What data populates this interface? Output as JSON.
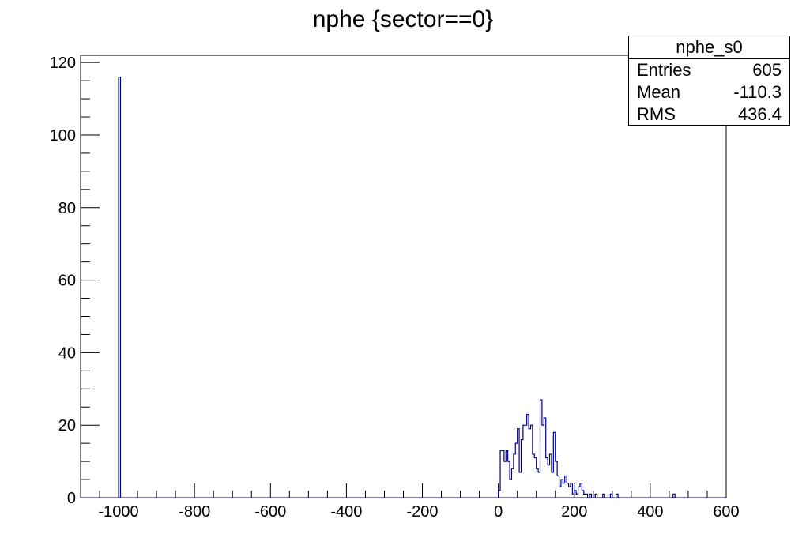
{
  "chart_data": {
    "type": "bar",
    "title": "nphe {sector==0}",
    "xlabel": "",
    "ylabel": "",
    "xlim": [
      -1100,
      600
    ],
    "ylim": [
      0,
      122
    ],
    "x_ticks": [
      -1000,
      -800,
      -600,
      -400,
      -200,
      0,
      200,
      400,
      600
    ],
    "y_ticks": [
      0,
      20,
      40,
      60,
      80,
      100,
      120
    ],
    "histogram": {
      "name": "nphe_s0",
      "bin_width": 5,
      "color": "#000080",
      "bins": [
        [
          -1000,
          116
        ],
        [
          0,
          2
        ],
        [
          5,
          13
        ],
        [
          10,
          13
        ],
        [
          15,
          10
        ],
        [
          20,
          13
        ],
        [
          25,
          10
        ],
        [
          30,
          5
        ],
        [
          35,
          8
        ],
        [
          40,
          12
        ],
        [
          45,
          15
        ],
        [
          50,
          19
        ],
        [
          55,
          7
        ],
        [
          60,
          16
        ],
        [
          65,
          20
        ],
        [
          70,
          20
        ],
        [
          75,
          23
        ],
        [
          80,
          19
        ],
        [
          85,
          20
        ],
        [
          90,
          12
        ],
        [
          95,
          11
        ],
        [
          100,
          8
        ],
        [
          105,
          7
        ],
        [
          110,
          27
        ],
        [
          115,
          20
        ],
        [
          120,
          22
        ],
        [
          125,
          11
        ],
        [
          130,
          9
        ],
        [
          135,
          12
        ],
        [
          140,
          7
        ],
        [
          145,
          18
        ],
        [
          150,
          10
        ],
        [
          155,
          6
        ],
        [
          160,
          3
        ],
        [
          165,
          5
        ],
        [
          170,
          4
        ],
        [
          175,
          6
        ],
        [
          180,
          4
        ],
        [
          185,
          3
        ],
        [
          190,
          4
        ],
        [
          195,
          1
        ],
        [
          200,
          2
        ],
        [
          205,
          1
        ],
        [
          210,
          3
        ],
        [
          215,
          4
        ],
        [
          220,
          2
        ],
        [
          225,
          1
        ],
        [
          230,
          1
        ],
        [
          240,
          1
        ],
        [
          255,
          1
        ],
        [
          275,
          1
        ],
        [
          295,
          1
        ],
        [
          310,
          1
        ],
        [
          460,
          1
        ]
      ]
    },
    "stats": {
      "title": "nphe_s0",
      "rows": [
        {
          "label": "Entries",
          "value": "605"
        },
        {
          "label": "Mean",
          "value": "-110.3"
        },
        {
          "label": "RMS",
          "value": "436.4"
        }
      ]
    }
  }
}
